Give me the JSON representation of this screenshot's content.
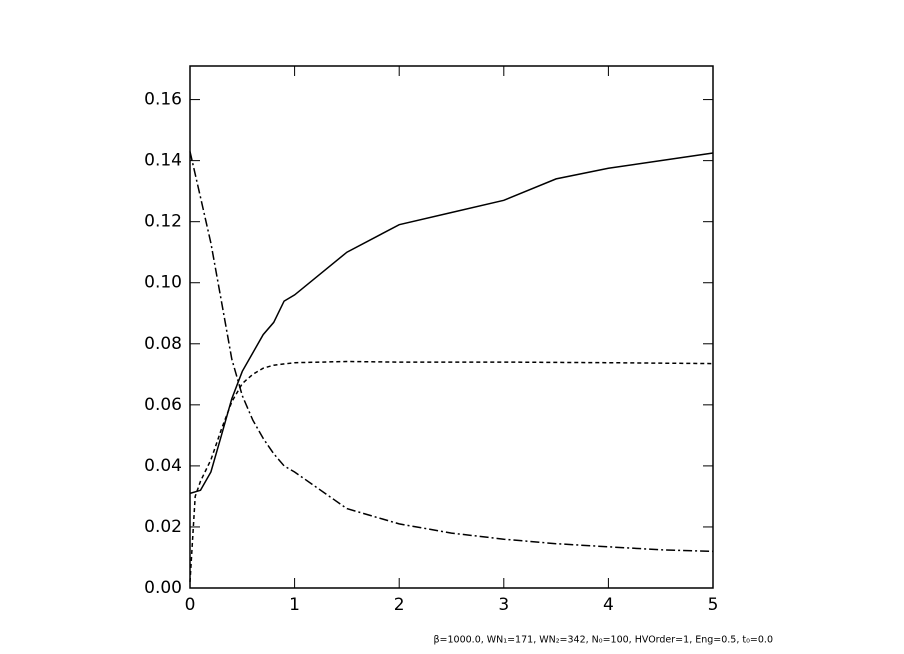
{
  "chart_data": {
    "type": "line",
    "footnote": "β=1000.0, WN₁=171, WN₂=342, N₀=100, HVOrder=1, Eng=0.5, t₀=0.0",
    "xlim": [
      0,
      5
    ],
    "xticks": [
      0,
      1,
      2,
      3,
      4,
      5
    ],
    "ylim": [
      0,
      0.171
    ],
    "yticks": [
      {
        "value": 0,
        "label": "0.00"
      },
      {
        "value": 0.02,
        "label": "0.02"
      },
      {
        "value": 0.04,
        "label": "0.04"
      },
      {
        "value": 0.06,
        "label": "0.06"
      },
      {
        "value": 0.08,
        "label": "0.08"
      },
      {
        "value": 0.1,
        "label": "0.10"
      },
      {
        "value": 0.12,
        "label": "0.12"
      },
      {
        "value": 0.14,
        "label": "0.14"
      },
      {
        "value": 0.16,
        "label": "0.16"
      }
    ],
    "series": [
      {
        "color": "#000000",
        "dash": "solid",
        "x": [
          0,
          0.1,
          0.2,
          0.3,
          0.4,
          0.5,
          0.6,
          0.7,
          0.8,
          0.9,
          1.0,
          1.5,
          2,
          2.5,
          3,
          3.5,
          4,
          4.5,
          5
        ],
        "values": [
          0.031,
          0.032,
          0.038,
          0.05,
          0.062,
          0.071,
          0.077,
          0.083,
          0.087,
          0.094,
          0.096,
          0.11,
          0.119,
          0.123,
          0.127,
          0.134,
          0.1375,
          0.14,
          0.1425
        ]
      },
      {
        "color": "#000000",
        "dash": "dashed",
        "x": [
          0,
          0.05,
          0.1,
          0.2,
          0.3,
          0.4,
          0.5,
          0.6,
          0.7,
          0.8,
          1.0,
          1.5,
          2,
          3,
          4,
          5
        ],
        "values": [
          0.002,
          0.03,
          0.035,
          0.042,
          0.052,
          0.061,
          0.067,
          0.07,
          0.072,
          0.073,
          0.0738,
          0.0742,
          0.074,
          0.074,
          0.0738,
          0.0735
        ]
      },
      {
        "color": "#000000",
        "dash": "dashdot",
        "x": [
          0,
          0.1,
          0.2,
          0.3,
          0.4,
          0.5,
          0.6,
          0.7,
          0.8,
          0.9,
          1.0,
          1.5,
          2,
          2.5,
          3,
          3.5,
          4,
          4.5,
          5
        ],
        "values": [
          0.143,
          0.128,
          0.113,
          0.094,
          0.075,
          0.063,
          0.055,
          0.049,
          0.044,
          0.04,
          0.038,
          0.026,
          0.021,
          0.018,
          0.016,
          0.0145,
          0.0135,
          0.0125,
          0.012
        ]
      }
    ]
  }
}
